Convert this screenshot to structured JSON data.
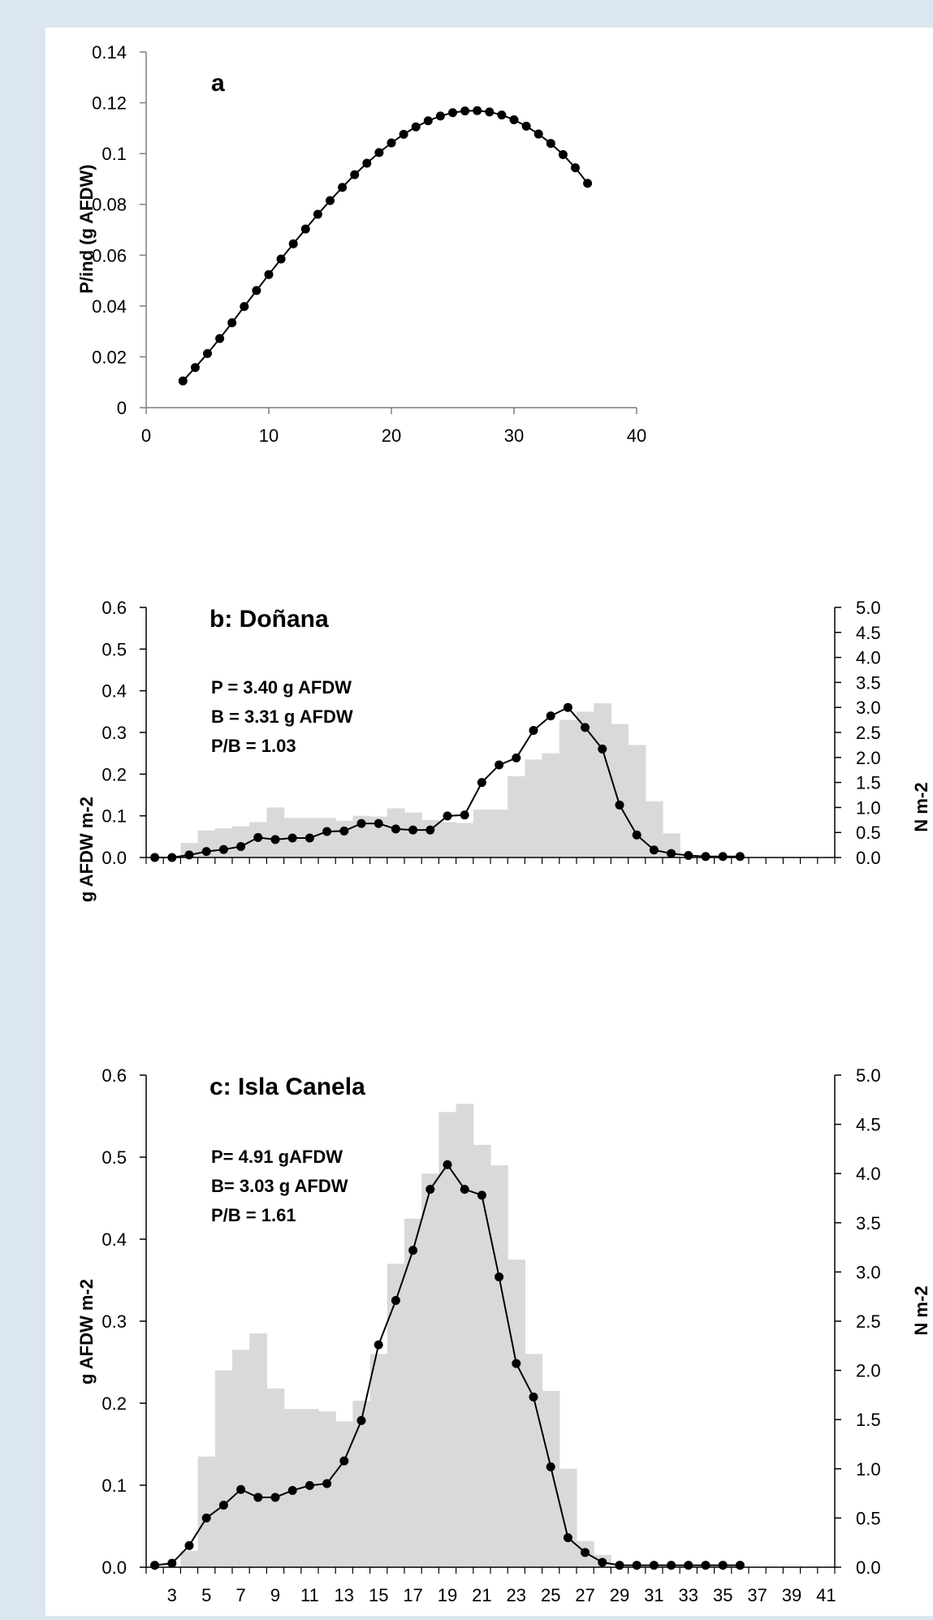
{
  "chart_data": [
    {
      "type": "scatter",
      "panel_label": "a",
      "ylabel": "P/ind (g AFDW)",
      "xlim": [
        0,
        40
      ],
      "ylim": [
        0,
        0.14
      ],
      "xticks": [
        "0",
        "10",
        "20",
        "30",
        "40"
      ],
      "yticks": [
        "0",
        "0.02",
        "0.04",
        "0.06",
        "0.08",
        "0.1",
        "0.12",
        "0.14"
      ],
      "grid": false,
      "x": [
        3,
        4,
        5,
        6,
        7,
        8,
        9,
        10,
        11,
        12,
        13,
        14,
        15,
        16,
        17,
        18,
        19,
        20,
        21,
        22,
        23,
        24,
        25,
        26,
        27,
        28,
        29,
        30,
        31,
        32,
        33,
        34,
        35,
        36
      ],
      "y": [
        0.0105,
        0.0158,
        0.0213,
        0.0272,
        0.0334,
        0.0398,
        0.0461,
        0.0524,
        0.0585,
        0.0645,
        0.0703,
        0.0761,
        0.0815,
        0.0867,
        0.0917,
        0.0962,
        0.1004,
        0.1042,
        0.1076,
        0.1105,
        0.1129,
        0.1148,
        0.1161,
        0.1168,
        0.1169,
        0.1164,
        0.1152,
        0.1133,
        0.1108,
        0.1077,
        0.104,
        0.0996,
        0.0944,
        0.0883
      ]
    },
    {
      "type": "bar",
      "panel_label": "b: Doñana",
      "stats": [
        "P = 3.40 g AFDW",
        "B = 3.31 g AFDW",
        "P/B = 1.03"
      ],
      "ylabel": "g AFDW m-2",
      "y2label": "N m-2",
      "ylim": [
        0,
        0.6
      ],
      "y2lim": [
        0,
        5.0
      ],
      "yticks": [
        "0.0",
        "0.1",
        "0.2",
        "0.3",
        "0.4",
        "0.5",
        "0.6"
      ],
      "y2ticks": [
        "0.0",
        "0.5",
        "1.0",
        "1.5",
        "2.0",
        "2.5",
        "3.0",
        "3.5",
        "4.0",
        "4.5",
        "5.0"
      ],
      "x": [
        2,
        3,
        4,
        5,
        6,
        7,
        8,
        9,
        10,
        11,
        12,
        13,
        14,
        15,
        16,
        17,
        18,
        19,
        20,
        21,
        22,
        23,
        24,
        25,
        26,
        27,
        28,
        29,
        30,
        31,
        32,
        33,
        34,
        35,
        36,
        37,
        38,
        39,
        40,
        41
      ],
      "bars": [
        0,
        0,
        0.035,
        0.065,
        0.07,
        0.075,
        0.085,
        0.12,
        0.095,
        0.095,
        0.095,
        0.088,
        0.1,
        0.098,
        0.118,
        0.108,
        0.09,
        0.085,
        0.083,
        0.115,
        0.115,
        0.195,
        0.235,
        0.25,
        0.33,
        0.35,
        0.37,
        0.32,
        0.27,
        0.135,
        0.058,
        0,
        0,
        0,
        0,
        0,
        0,
        0,
        0,
        0
      ],
      "line_x": [
        2,
        3,
        4,
        5,
        6,
        7,
        8,
        9,
        10,
        11,
        12,
        13,
        14,
        15,
        16,
        17,
        18,
        19,
        20,
        21,
        22,
        23,
        24,
        25,
        26,
        27,
        28,
        29,
        30,
        31,
        32,
        33,
        34,
        35,
        36
      ],
      "line_N": [
        0,
        0,
        0.05,
        0.12,
        0.16,
        0.22,
        0.4,
        0.36,
        0.39,
        0.39,
        0.52,
        0.53,
        0.68,
        0.68,
        0.57,
        0.55,
        0.55,
        0.83,
        0.85,
        1.5,
        1.85,
        1.99,
        2.54,
        2.83,
        3.0,
        2.6,
        2.17,
        1.05,
        0.45,
        0.15,
        0.08,
        0.04,
        0.02,
        0.02,
        0.02
      ]
    },
    {
      "type": "bar",
      "panel_label": "c: Isla Canela",
      "stats": [
        "P= 4.91 gAFDW",
        "B= 3.03 g AFDW",
        "P/B = 1.61"
      ],
      "ylabel": "g AFDW m-2",
      "y2label": "N m-2",
      "ylim": [
        0,
        0.6
      ],
      "y2lim": [
        0,
        5.0
      ],
      "yticks": [
        "0.0",
        "0.1",
        "0.2",
        "0.3",
        "0.4",
        "0.5",
        "0.6"
      ],
      "y2ticks": [
        "0.0",
        "0.5",
        "1.0",
        "1.5",
        "2.0",
        "2.5",
        "3.0",
        "3.5",
        "4.0",
        "4.5",
        "5.0"
      ],
      "xticks": [
        "3",
        "5",
        "7",
        "9",
        "11",
        "13",
        "15",
        "17",
        "19",
        "21",
        "23",
        "25",
        "27",
        "29",
        "31",
        "33",
        "35",
        "37",
        "39",
        "41"
      ],
      "x": [
        2,
        3,
        4,
        5,
        6,
        7,
        8,
        9,
        10,
        11,
        12,
        13,
        14,
        15,
        16,
        17,
        18,
        19,
        20,
        21,
        22,
        23,
        24,
        25,
        26,
        27,
        28,
        29,
        30,
        31,
        32,
        33,
        34,
        35,
        36,
        37,
        38,
        39,
        40,
        41
      ],
      "bars": [
        0,
        0,
        0.02,
        0.135,
        0.24,
        0.265,
        0.285,
        0.218,
        0.193,
        0.193,
        0.19,
        0.178,
        0.203,
        0.26,
        0.37,
        0.425,
        0.48,
        0.555,
        0.565,
        0.515,
        0.49,
        0.375,
        0.26,
        0.215,
        0.12,
        0.032,
        0.015,
        0,
        0,
        0,
        0,
        0,
        0,
        0,
        0,
        0,
        0,
        0,
        0,
        0
      ],
      "line_x": [
        2,
        3,
        4,
        5,
        6,
        7,
        8,
        9,
        10,
        11,
        12,
        13,
        14,
        15,
        16,
        17,
        18,
        19,
        20,
        21,
        22,
        23,
        24,
        25,
        26,
        27,
        28,
        29,
        30,
        31,
        32,
        33,
        34,
        35,
        36
      ],
      "line_N": [
        0.02,
        0.04,
        0.22,
        0.5,
        0.63,
        0.79,
        0.71,
        0.71,
        0.78,
        0.83,
        0.85,
        1.08,
        1.49,
        2.26,
        2.71,
        3.22,
        3.84,
        4.09,
        3.84,
        3.78,
        2.95,
        2.07,
        1.73,
        1.02,
        0.3,
        0.15,
        0.05,
        0.02,
        0.02,
        0.02,
        0.02,
        0.02,
        0.02,
        0.02,
        0.02
      ]
    }
  ]
}
